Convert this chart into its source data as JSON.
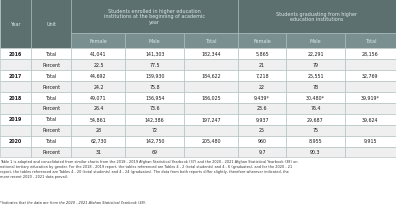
{
  "col_headers_top": [
    "Year",
    "Unit",
    "Students enrolled in higher education\ninstitutions at the beginning of academic\nyear",
    "Students graduating from higher\neducation institutions"
  ],
  "col_headers_sub": [
    "Female",
    "Male",
    "Total",
    "Female",
    "Male",
    "Total"
  ],
  "rows": [
    {
      "year": "2016",
      "unit": "Total",
      "e_f": "41,041",
      "e_m": "141,303",
      "e_t": "182,344",
      "g_f": "5,865",
      "g_m": "22,291",
      "g_t": "28,156"
    },
    {
      "year": "",
      "unit": "Percent",
      "e_f": "22.5",
      "e_m": "77.5",
      "e_t": "",
      "g_f": "21",
      "g_m": "79",
      "g_t": ""
    },
    {
      "year": "2017",
      "unit": "Total",
      "e_f": "44,692",
      "e_m": "139,930",
      "e_t": "184,622",
      "g_f": "7,218",
      "g_m": "25,551",
      "g_t": "32,769"
    },
    {
      "year": "",
      "unit": "Percent",
      "e_f": "24.2",
      "e_m": "75.8",
      "e_t": "",
      "g_f": "22",
      "g_m": "78",
      "g_t": ""
    },
    {
      "year": "2018",
      "unit": "Total",
      "e_f": "49,071",
      "e_m": "136,954",
      "e_t": "186,025",
      "g_f": "9,439*",
      "g_m": "30,480*",
      "g_t": "39,919*"
    },
    {
      "year": "",
      "unit": "Percent",
      "e_f": "26.4",
      "e_m": "73.6",
      "e_t": "",
      "g_f": "23.6",
      "g_m": "76.4",
      "g_t": ""
    },
    {
      "year": "2019",
      "unit": "Total",
      "e_f": "54,861",
      "e_m": "142,386",
      "e_t": "197,247",
      "g_f": "9,937",
      "g_m": "29,687",
      "g_t": "39,624"
    },
    {
      "year": "",
      "unit": "Percent",
      "e_f": "28",
      "e_m": "72",
      "e_t": "",
      "g_f": "25",
      "g_m": "75",
      "g_t": ""
    },
    {
      "year": "2020",
      "unit": "Total",
      "e_f": "62,730",
      "e_m": "142,750",
      "e_t": "205,480",
      "g_f": "960",
      "g_m": "8,955",
      "g_t": "9,915"
    },
    {
      "year": "",
      "unit": "Percent",
      "e_f": "31",
      "e_m": "69",
      "e_t": "",
      "g_f": "9.7",
      "g_m": "90.3",
      "g_t": ""
    }
  ],
  "footnote1": "Table 1 is adapted and consolidated from similar charts from the 2018 - 2019 Afghan Statistical Yearbook (37) and the 2020 - 2021 Afghan Statistical Yearbook (38) on\nnational tertiary education by gender. For the 2018 - 2019 report, the tables referenced are Tables 4 - 2 (total students) and 4 - 6 (graduates), and for the 2020 - 21\nreport, the tables referenced are Tables 4 - 20 (total students) and 4 - 24 (graduates). The data from both reports differ slightly, therefore wherever indicated, the\nmore recent 2020 - 2021 data prevail.",
  "footnote2": "*Indicates that the data are from the 2020 - 2021 Afghan Statistical Yearbook (38).",
  "header_bg": "#5c7070",
  "subheader_bg": "#7a9090",
  "row_bg_total": "#ffffff",
  "row_bg_percent": "#efefef",
  "border_color": "#aabbbb",
  "header_text": "#dce8e8",
  "data_text": "#1a1a1a"
}
